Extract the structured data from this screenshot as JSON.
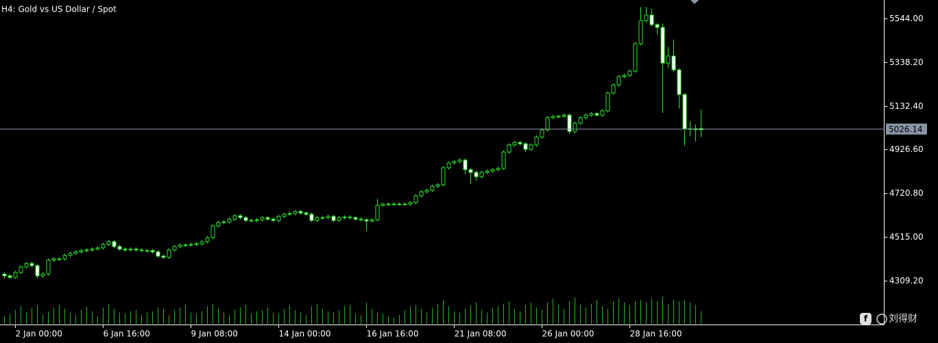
{
  "chart_data": {
    "type": "candlestick",
    "title": "H4:  Gold vs US Dollar / Spot",
    "watermark": "刘得财",
    "color": "#2ee62e",
    "bull_fill": "#000000",
    "bear_fill": "#ffffff",
    "volume_color": "#27b327",
    "open": [
      4340,
      4332,
      4325,
      4348,
      4374,
      4390,
      4380,
      4332,
      4341,
      4406,
      4412,
      4412,
      4428,
      4438,
      4445,
      4451,
      4454,
      4458,
      4464,
      4480,
      4493,
      4470,
      4458,
      4454,
      4458,
      4454,
      4451,
      4451,
      4445,
      4425,
      4419,
      4454,
      4470,
      4477,
      4477,
      4480,
      4483,
      4493,
      4512,
      4567,
      4583,
      4586,
      4599,
      4615,
      4606,
      4593,
      4593,
      4596,
      4606,
      4599,
      4593,
      4612,
      4622,
      4625,
      4635,
      4628,
      4622,
      4593,
      4606,
      4606,
      4612,
      4593,
      4606,
      4609,
      4606,
      4599,
      4596,
      4590,
      4596,
      4664,
      4670,
      4670,
      4670,
      4670,
      4670,
      4677,
      4709,
      4728,
      4735,
      4754,
      4761,
      4841,
      4864,
      4870,
      4877,
      4832,
      4819,
      4799,
      4819,
      4825,
      4832,
      4838,
      4915,
      4948,
      4960,
      4954,
      4928,
      4948,
      4986,
      5019,
      5077,
      5083,
      5083,
      5089,
      5012,
      5051,
      5077,
      5089,
      5096,
      5089,
      5109,
      5193,
      5231,
      5270,
      5276,
      5296,
      5425,
      5534,
      5560,
      5515,
      5502,
      5334,
      5367,
      5302,
      5186,
      5025,
      5025,
      5020
    ],
    "high": [
      4348,
      4340,
      4356,
      4382,
      4398,
      4400,
      4388,
      4349,
      4414,
      4420,
      4420,
      4436,
      4446,
      4453,
      4459,
      4462,
      4466,
      4472,
      4488,
      4501,
      4501,
      4478,
      4466,
      4466,
      4466,
      4462,
      4459,
      4459,
      4453,
      4433,
      4462,
      4478,
      4485,
      4485,
      4488,
      4491,
      4501,
      4520,
      4575,
      4591,
      4594,
      4607,
      4623,
      4623,
      4614,
      4601,
      4604,
      4614,
      4614,
      4607,
      4620,
      4630,
      4633,
      4643,
      4643,
      4636,
      4630,
      4614,
      4614,
      4620,
      4620,
      4614,
      4617,
      4617,
      4614,
      4607,
      4604,
      4604,
      4695,
      4678,
      4678,
      4678,
      4678,
      4678,
      4685,
      4717,
      4736,
      4743,
      4762,
      4769,
      4849,
      4872,
      4878,
      4885,
      4885,
      4840,
      4827,
      4827,
      4833,
      4840,
      4846,
      4923,
      4956,
      4968,
      4968,
      4962,
      4956,
      4994,
      5027,
      5085,
      5091,
      5091,
      5097,
      5097,
      5059,
      5085,
      5097,
      5104,
      5104,
      5117,
      5201,
      5239,
      5278,
      5284,
      5304,
      5433,
      5598,
      5598,
      5590,
      5523,
      5520,
      5410,
      5445,
      5310,
      5194,
      5060,
      5045,
      5115
    ],
    "low": [
      4318,
      4317,
      4317,
      4340,
      4366,
      4372,
      4320,
      4322,
      4333,
      4398,
      4404,
      4404,
      4420,
      4430,
      4437,
      4443,
      4446,
      4450,
      4456,
      4472,
      4462,
      4450,
      4446,
      4446,
      4446,
      4443,
      4443,
      4437,
      4417,
      4411,
      4411,
      4446,
      4462,
      4469,
      4469,
      4472,
      4475,
      4485,
      4504,
      4559,
      4575,
      4578,
      4591,
      4598,
      4585,
      4585,
      4585,
      4588,
      4591,
      4585,
      4585,
      4604,
      4614,
      4617,
      4620,
      4614,
      4585,
      4585,
      4598,
      4598,
      4585,
      4585,
      4598,
      4598,
      4591,
      4588,
      4545,
      4582,
      4588,
      4656,
      4662,
      4662,
      4662,
      4662,
      4662,
      4669,
      4701,
      4720,
      4727,
      4746,
      4753,
      4833,
      4856,
      4862,
      4810,
      4765,
      4780,
      4791,
      4811,
      4817,
      4824,
      4830,
      4907,
      4940,
      4946,
      4915,
      4920,
      4940,
      4978,
      5011,
      5069,
      5075,
      5075,
      5000,
      5004,
      5043,
      5069,
      5081,
      5081,
      5081,
      5101,
      5185,
      5223,
      5262,
      5268,
      5288,
      5417,
      5526,
      5507,
      5470,
      5100,
      5310,
      5290,
      5120,
      4945,
      4990,
      4965,
      4985
    ],
    "close": [
      4332,
      4325,
      4348,
      4374,
      4390,
      4380,
      4332,
      4341,
      4406,
      4412,
      4412,
      4428,
      4438,
      4445,
      4451,
      4454,
      4458,
      4464,
      4480,
      4493,
      4470,
      4458,
      4454,
      4458,
      4454,
      4451,
      4451,
      4445,
      4425,
      4419,
      4454,
      4470,
      4477,
      4477,
      4480,
      4483,
      4493,
      4512,
      4567,
      4583,
      4586,
      4599,
      4615,
      4606,
      4593,
      4593,
      4596,
      4606,
      4599,
      4593,
      4612,
      4622,
      4625,
      4635,
      4628,
      4622,
      4593,
      4606,
      4606,
      4612,
      4593,
      4606,
      4609,
      4606,
      4599,
      4596,
      4590,
      4596,
      4664,
      4670,
      4670,
      4670,
      4670,
      4670,
      4677,
      4709,
      4728,
      4735,
      4754,
      4761,
      4841,
      4864,
      4870,
      4877,
      4832,
      4819,
      4799,
      4819,
      4825,
      4832,
      4838,
      4915,
      4948,
      4960,
      4954,
      4928,
      4948,
      4986,
      5019,
      5077,
      5083,
      5083,
      5089,
      5012,
      5051,
      5077,
      5089,
      5096,
      5089,
      5109,
      5193,
      5231,
      5270,
      5276,
      5296,
      5425,
      5534,
      5560,
      5515,
      5502,
      5334,
      5367,
      5302,
      5186,
      5025,
      5025,
      5020,
      5026.14
    ],
    "volume": [
      12,
      16,
      22,
      28,
      18,
      25,
      30,
      14,
      20,
      26,
      30,
      24,
      18,
      14,
      22,
      27,
      20,
      12,
      26,
      31,
      24,
      18,
      16,
      20,
      22,
      14,
      18,
      20,
      26,
      24,
      14,
      22,
      26,
      30,
      18,
      16,
      20,
      28,
      32,
      24,
      18,
      14,
      22,
      26,
      30,
      16,
      20,
      22,
      26,
      18,
      16,
      24,
      30,
      22,
      18,
      14,
      28,
      32,
      24,
      20,
      18,
      22,
      28,
      30,
      16,
      14,
      34,
      24,
      18,
      16,
      12,
      10,
      14,
      22,
      28,
      30,
      24,
      18,
      26,
      32,
      38,
      28,
      20,
      18,
      24,
      30,
      34,
      22,
      18,
      26,
      28,
      32,
      36,
      24,
      20,
      30,
      34,
      26,
      22,
      34,
      40,
      30,
      24,
      36,
      42,
      30,
      26,
      32,
      38,
      28,
      24,
      36,
      40,
      34,
      30,
      36,
      38,
      34,
      40,
      36,
      44,
      32,
      38,
      36,
      38,
      34,
      30,
      20
    ],
    "vlim": [
      0,
      50
    ],
    "xlim": [
      -0.75,
      160.375
    ],
    "xticks": [
      {
        "value": 2,
        "label": "2 Jan 00:00"
      },
      {
        "value": 18,
        "label": "6 Jan 16:00"
      },
      {
        "value": 34,
        "label": "9 Jan 08:00"
      },
      {
        "value": 50,
        "label": "14 Jan 00:00"
      },
      {
        "value": 66,
        "label": "16 Jan 16:00"
      },
      {
        "value": 82,
        "label": "21 Jan 08:00"
      },
      {
        "value": 98,
        "label": "26 Jan 00:00"
      },
      {
        "value": 114,
        "label": "28 Jan 16:00"
      }
    ],
    "ylim": [
      4260.8,
      5631
    ],
    "yticks": [
      {
        "value": 4309.2,
        "label": "4309.20"
      },
      {
        "value": 4515,
        "label": "4515.00"
      },
      {
        "value": 4720.8,
        "label": "4720.80"
      },
      {
        "value": 4926.6,
        "label": "4926.60"
      },
      {
        "value": 5132.4,
        "label": "5132.40"
      },
      {
        "value": 5338.2,
        "label": "5338.20"
      },
      {
        "value": 5544,
        "label": "5544.00"
      }
    ],
    "last_price": 5026.14
  }
}
